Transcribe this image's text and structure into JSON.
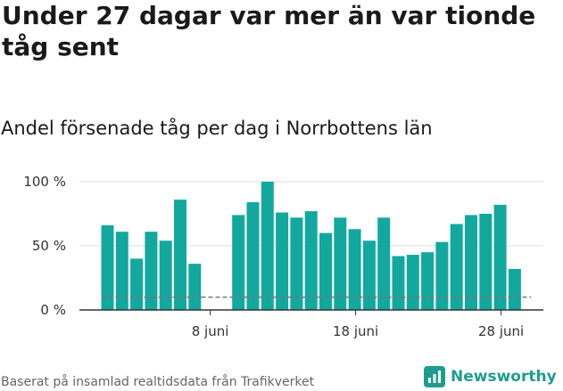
{
  "title": "Under 27 dagar var mer än var tionde tåg sent",
  "subtitle": "Andel försenade tåg per dag i Norrbottens län",
  "source": "Baserat på insamlad realtidsdata från Trafikverket",
  "brand": {
    "name": "Newsworthy",
    "icon": "newsworthy-logo-icon"
  },
  "colors": {
    "bar": "#13a89e",
    "brand": "#1f9c8f",
    "reference_line": "#777777",
    "gridline": "#dddddd"
  },
  "chart_data": {
    "type": "bar",
    "title": "Andel försenade tåg per dag i Norrbottens län",
    "xlabel": "",
    "ylabel": "",
    "ylim": [
      0,
      100
    ],
    "y_ticks": [
      {
        "value": 0,
        "label": "0 %"
      },
      {
        "value": 50,
        "label": "50 %"
      },
      {
        "value": 100,
        "label": "100 %"
      }
    ],
    "x_ticks": [
      {
        "day": 8,
        "label": "8 juni"
      },
      {
        "day": 18,
        "label": "18 juni"
      },
      {
        "day": 28,
        "label": "28 juni"
      }
    ],
    "x": [
      1,
      2,
      3,
      4,
      5,
      6,
      7,
      8,
      9,
      10,
      11,
      12,
      13,
      14,
      15,
      16,
      17,
      18,
      19,
      20,
      21,
      22,
      23,
      24,
      25,
      26,
      27,
      28,
      29,
      30
    ],
    "values": [
      66,
      61,
      40,
      61,
      54,
      86,
      36,
      null,
      null,
      74,
      84,
      100,
      76,
      72,
      77,
      60,
      72,
      63,
      54,
      72,
      42,
      43,
      45,
      53,
      67,
      74,
      75,
      82,
      32,
      null
    ],
    "reference_line": {
      "value": 10,
      "style": "dashed"
    },
    "grid": true,
    "legend": "none"
  }
}
